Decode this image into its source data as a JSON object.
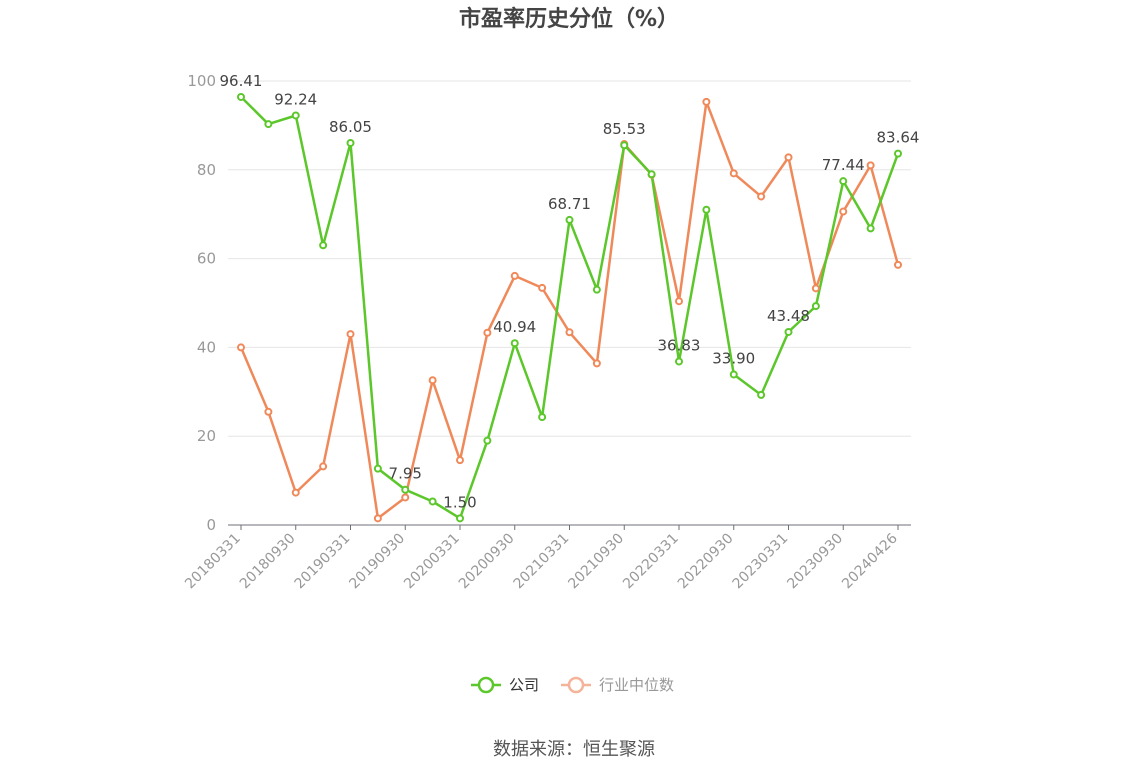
{
  "chart_data": {
    "type": "line",
    "title": "市盈率历史分位（%）",
    "source": "数据来源：恒生聚源",
    "xlabel": "",
    "ylabel": "",
    "ylim": [
      0,
      100
    ],
    "yticks": [
      0,
      20,
      40,
      60,
      80,
      100
    ],
    "grid": true,
    "legend_position": "bottom",
    "x": [
      "20180331",
      "20180630",
      "20180930",
      "20181231",
      "20190331",
      "20190630",
      "20190930",
      "20191231",
      "20200331",
      "20200630",
      "20200930",
      "20201231",
      "20210331",
      "20210630",
      "20210930",
      "20211231",
      "20220331",
      "20220630",
      "20220930",
      "20221231",
      "20230331",
      "20230630",
      "20230930",
      "20231231",
      "20240426"
    ],
    "x_tick_labels": [
      "20180331",
      "20180930",
      "20190331",
      "20190930",
      "20200331",
      "20200930",
      "20210331",
      "20210930",
      "20220331",
      "20220930",
      "20230331",
      "20230930",
      "20240426"
    ],
    "series": [
      {
        "name": "公司",
        "color": "#5bc72a",
        "values": [
          96.41,
          90.3,
          92.24,
          63.0,
          86.05,
          12.7,
          7.95,
          5.3,
          1.5,
          19.0,
          40.94,
          24.3,
          68.71,
          53.0,
          85.53,
          79.0,
          36.83,
          71.0,
          33.9,
          29.3,
          43.48,
          49.3,
          77.44,
          66.8,
          83.64
        ],
        "labels": [
          "96.41",
          "",
          "92.24",
          "",
          "86.05",
          "",
          "7.95",
          "",
          "1.50",
          "",
          "40.94",
          "",
          "68.71",
          "",
          "85.53",
          "",
          "36.83",
          "",
          "33.90",
          "",
          "43.48",
          "",
          "77.44",
          "",
          "83.64"
        ]
      },
      {
        "name": "行业中位数",
        "color": "#f0895a",
        "values": [
          40.0,
          25.5,
          7.3,
          13.2,
          43.0,
          1.5,
          6.2,
          32.6,
          14.6,
          43.3,
          56.1,
          53.4,
          43.4,
          36.4,
          85.8,
          78.9,
          50.4,
          95.3,
          79.2,
          74.0,
          82.8,
          53.3,
          70.6,
          81.0,
          58.6
        ],
        "labels": []
      }
    ]
  },
  "legend": {
    "items": [
      {
        "name": "公司",
        "icon": "circle-line-icon",
        "color": "#5bc72a",
        "text_color": "#333333"
      },
      {
        "name": "行业中位数",
        "icon": "circle-line-icon",
        "color": "#f5b39a",
        "text_color": "#999999"
      }
    ]
  }
}
